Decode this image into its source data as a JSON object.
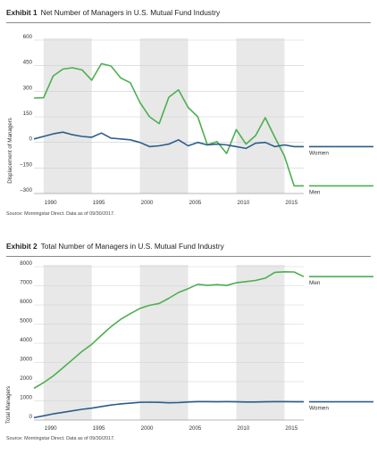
{
  "exhibit1": {
    "number": "Exhibit 1",
    "title": "Net Number of Managers in U.S. Mutual Fund Industry",
    "source": "Source: Morningstar Direct. Data as of 09/30/2017."
  },
  "exhibit2": {
    "number": "Exhibit 2",
    "title": "Total Number of Managers in U.S. Mutual Fund Industry",
    "source": "Source: Morningstar Direct. Data as of 09/30/2017."
  },
  "chart_data": [
    {
      "type": "line",
      "title": "Net Number of Managers in U.S. Mutual Fund Industry",
      "xlabel": "",
      "ylabel": "Displacement of Managers",
      "xlim": [
        1989,
        2017
      ],
      "ylim": [
        -300,
        600
      ],
      "yticks": [
        600,
        450,
        300,
        150,
        0,
        -150,
        -300
      ],
      "ytick_labels": [
        "600",
        "450",
        "300",
        "150",
        "0",
        "–150",
        "–300"
      ],
      "xticks": [
        1990,
        1995,
        2000,
        2005,
        2010,
        2015
      ],
      "shaded_periods": [
        [
          1990,
          1995
        ],
        [
          2000,
          2005
        ],
        [
          2010,
          2015
        ]
      ],
      "grid": "horizontal",
      "legend": "right-end labels",
      "series": [
        {
          "name": "Men",
          "color": "#4caf50",
          "x": [
            1989,
            1990,
            1991,
            1992,
            1993,
            1994,
            1995,
            1996,
            1997,
            1998,
            1999,
            2000,
            2001,
            2002,
            2003,
            2004,
            2005,
            2006,
            2007,
            2008,
            2009,
            2010,
            2011,
            2012,
            2013,
            2014,
            2015,
            2016,
            2017
          ],
          "values": [
            260,
            262,
            390,
            430,
            438,
            425,
            365,
            462,
            448,
            378,
            350,
            235,
            150,
            110,
            265,
            308,
            205,
            150,
            -15,
            5,
            -65,
            75,
            -10,
            40,
            145,
            30,
            -80,
            -255,
            -255
          ]
        },
        {
          "name": "Women",
          "color": "#2b5d8c",
          "x": [
            1989,
            1990,
            1991,
            1992,
            1993,
            1994,
            1995,
            1996,
            1997,
            1998,
            1999,
            2000,
            2001,
            2002,
            2003,
            2004,
            2005,
            2006,
            2007,
            2008,
            2009,
            2010,
            2011,
            2012,
            2013,
            2014,
            2015,
            2016,
            2017
          ],
          "values": [
            20,
            35,
            50,
            60,
            45,
            35,
            30,
            55,
            25,
            20,
            15,
            0,
            -25,
            -20,
            -10,
            15,
            -20,
            0,
            -15,
            -10,
            -15,
            -25,
            -35,
            -5,
            0,
            -25,
            -15,
            -25,
            -25
          ]
        }
      ]
    },
    {
      "type": "line",
      "title": "Total Number of Managers in U.S. Mutual Fund Industry",
      "xlabel": "",
      "ylabel": "Total Managers",
      "xlim": [
        1989,
        2017
      ],
      "ylim": [
        0,
        8000
      ],
      "yticks": [
        8000,
        7000,
        6000,
        5000,
        4000,
        3000,
        2000,
        1000,
        0
      ],
      "ytick_labels": [
        "8000",
        "7000",
        "6000",
        "5000",
        "4000",
        "3000",
        "2000",
        "1000",
        "0"
      ],
      "xticks": [
        1990,
        1995,
        2000,
        2005,
        2010,
        2015
      ],
      "shaded_periods": [
        [
          1990,
          1995
        ],
        [
          2000,
          2005
        ],
        [
          2010,
          2015
        ]
      ],
      "grid": "horizontal",
      "legend": "right-end labels",
      "series": [
        {
          "name": "Men",
          "color": "#4caf50",
          "x": [
            1989,
            1990,
            1991,
            1992,
            1993,
            1994,
            1995,
            1996,
            1997,
            1998,
            1999,
            2000,
            2001,
            2002,
            2003,
            2004,
            2005,
            2006,
            2007,
            2008,
            2009,
            2010,
            2011,
            2012,
            2013,
            2014,
            2015,
            2016,
            2017
          ],
          "values": [
            1650,
            1950,
            2300,
            2720,
            3150,
            3580,
            3950,
            4420,
            4870,
            5250,
            5550,
            5820,
            5980,
            6080,
            6350,
            6650,
            6850,
            7080,
            7030,
            7060,
            7020,
            7160,
            7220,
            7280,
            7400,
            7700,
            7730,
            7720,
            7480
          ]
        },
        {
          "name": "Women",
          "color": "#2b5d8c",
          "x": [
            1989,
            1990,
            1991,
            1992,
            1993,
            1994,
            1995,
            1996,
            1997,
            1998,
            1999,
            2000,
            2001,
            2002,
            2003,
            2004,
            2005,
            2006,
            2007,
            2008,
            2009,
            2010,
            2011,
            2012,
            2013,
            2014,
            2015,
            2016,
            2017
          ],
          "values": [
            120,
            220,
            320,
            400,
            480,
            560,
            620,
            700,
            780,
            840,
            880,
            920,
            930,
            920,
            900,
            910,
            940,
            960,
            960,
            950,
            960,
            950,
            940,
            940,
            950,
            960,
            960,
            950,
            950
          ]
        }
      ]
    }
  ]
}
